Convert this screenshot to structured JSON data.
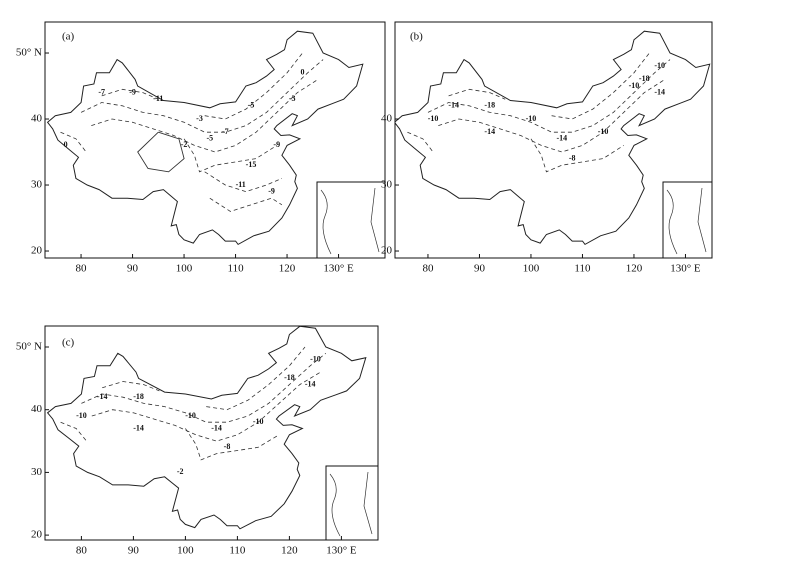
{
  "panels": [
    {
      "label": "(a)",
      "lat_ticks": [
        {
          "value": 50,
          "label": "50° N"
        },
        {
          "value": 40,
          "label": "40"
        },
        {
          "value": 30,
          "label": "30"
        },
        {
          "value": 20,
          "label": "20"
        }
      ],
      "lon_ticks": [
        {
          "value": 80,
          "label": "80"
        },
        {
          "value": 90,
          "label": "90"
        },
        {
          "value": 100,
          "label": "100"
        },
        {
          "value": 110,
          "label": "110"
        },
        {
          "value": 120,
          "label": "120"
        },
        {
          "value": 130,
          "label": "130° E"
        }
      ],
      "contour_labels": [
        "-7",
        "-9",
        "-11",
        "0",
        "-3",
        "-5",
        "-7",
        "-2",
        "-15",
        "-11",
        "-9",
        "-5",
        "-3",
        "0",
        "-9"
      ]
    },
    {
      "label": "(b)",
      "lat_ticks": [
        {
          "value": 40,
          "label": "40"
        },
        {
          "value": 30,
          "label": "30"
        },
        {
          "value": 20,
          "label": "20"
        }
      ],
      "lon_ticks": [
        {
          "value": 80,
          "label": "80"
        },
        {
          "value": 90,
          "label": "90"
        },
        {
          "value": 100,
          "label": "100"
        },
        {
          "value": 110,
          "label": "110"
        },
        {
          "value": 120,
          "label": "120"
        },
        {
          "value": 130,
          "label": "130° E"
        }
      ],
      "contour_labels": [
        "-14",
        "-18",
        "-10",
        "-14",
        "-10",
        "-14",
        "-10",
        "-8",
        "-10",
        "-18",
        "-14",
        "-10"
      ]
    },
    {
      "label": "(c)",
      "lat_ticks": [
        {
          "value": 50,
          "label": "50° N"
        },
        {
          "value": 40,
          "label": "40"
        },
        {
          "value": 30,
          "label": "30"
        },
        {
          "value": 20,
          "label": "20"
        }
      ],
      "lon_ticks": [
        {
          "value": 80,
          "label": "80"
        },
        {
          "value": 90,
          "label": "90"
        },
        {
          "value": 100,
          "label": "100"
        },
        {
          "value": 110,
          "label": "110"
        },
        {
          "value": 120,
          "label": "120"
        },
        {
          "value": 130,
          "label": "130° E"
        }
      ],
      "contour_labels": [
        "-14",
        "-18",
        "-10",
        "-14",
        "-10",
        "-14",
        "-10",
        "-8",
        "-2",
        "-18",
        "-14",
        "-10"
      ]
    }
  ]
}
